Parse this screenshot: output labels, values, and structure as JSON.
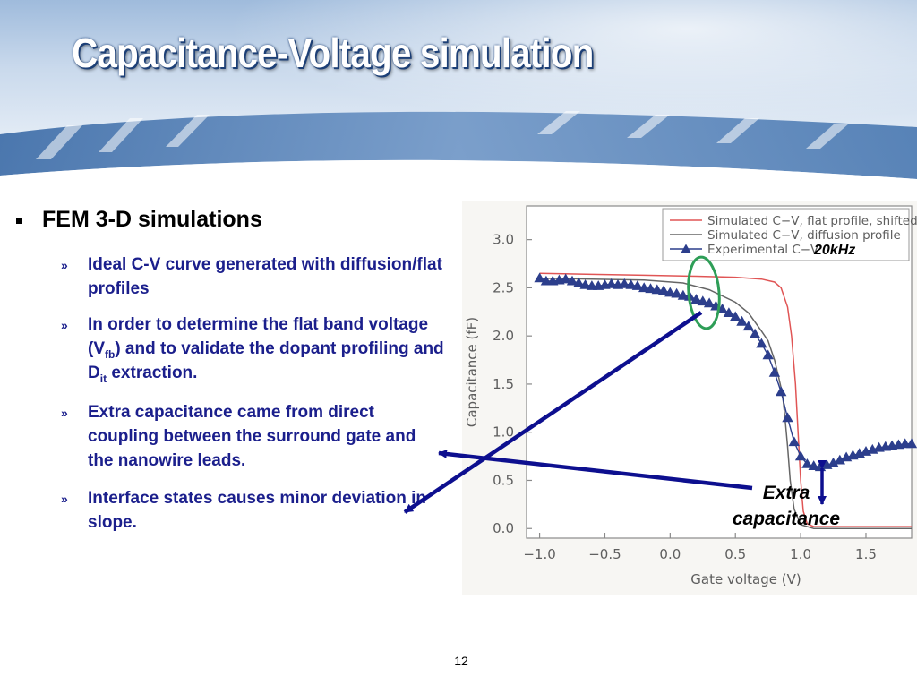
{
  "slide": {
    "title": "Capacitance-Voltage simulation",
    "page_number": "12",
    "main_bullet": "FEM 3-D simulations",
    "sub_bullets": [
      {
        "marker": "»",
        "parts": [
          {
            "t": "Ideal C-V curve generated with diffusion/flat profiles"
          }
        ]
      },
      {
        "marker": "»",
        "parts": [
          {
            "t": "In order to determine the flat band voltage (V"
          },
          {
            "sub": "fb"
          },
          {
            "t": ") and to validate the dopant profiling and D"
          },
          {
            "sub": "it"
          },
          {
            "t": " extraction."
          }
        ]
      },
      {
        "marker": "»",
        "parts": [
          {
            "t": "Extra capacitance came from direct coupling between the surround gate and the nanowire leads."
          }
        ]
      },
      {
        "marker": "»",
        "parts": [
          {
            "t": "Interface states causes minor deviation in slope."
          }
        ]
      }
    ],
    "annotations": {
      "frequency_label": "20kHz",
      "extra_label_line1": "Extra",
      "extra_label_line2": "capacitance"
    },
    "colors": {
      "title_shadow": "#1c3f76",
      "bullet_text": "#1b1f8c",
      "arrow": "#0d0f8f",
      "circle": "#2e9e57",
      "banner": "#3a6aa6"
    }
  },
  "chart_data": {
    "type": "line",
    "xlabel": "Gate voltage (V)",
    "ylabel": "Capacitance (fF)",
    "xlim": [
      -1.1,
      1.85
    ],
    "ylim": [
      -0.1,
      3.35
    ],
    "xticks": [
      -1.0,
      -0.5,
      0.0,
      0.5,
      1.0,
      1.5
    ],
    "xtick_labels": [
      "−1.0",
      "−0.5",
      "0.0",
      "0.5",
      "1.0",
      "1.5"
    ],
    "yticks": [
      0.0,
      0.5,
      1.0,
      1.5,
      2.0,
      2.5,
      3.0
    ],
    "ytick_labels": [
      "0.0",
      "0.5",
      "1.0",
      "1.5",
      "2.0",
      "2.5",
      "3.0"
    ],
    "grid": false,
    "legend_position": "top-right",
    "series": [
      {
        "name": "Simulated C−V, flat profile, shifted",
        "color": "#e05555",
        "marker": "none",
        "x": [
          -1.0,
          -0.6,
          -0.2,
          0.2,
          0.5,
          0.7,
          0.8,
          0.85,
          0.9,
          0.93,
          0.96,
          0.98,
          1.0,
          1.02,
          1.05,
          1.1,
          1.3,
          1.6,
          1.85
        ],
        "y": [
          2.65,
          2.64,
          2.63,
          2.62,
          2.61,
          2.59,
          2.56,
          2.5,
          2.3,
          2.0,
          1.5,
          1.0,
          0.5,
          0.18,
          0.05,
          0.02,
          0.02,
          0.02,
          0.02
        ]
      },
      {
        "name": "Simulated C−V, diffusion profile",
        "color": "#666666",
        "marker": "none",
        "x": [
          -1.0,
          -0.6,
          -0.2,
          0.1,
          0.3,
          0.5,
          0.6,
          0.7,
          0.75,
          0.8,
          0.83,
          0.86,
          0.88,
          0.9,
          0.92,
          0.95,
          1.0,
          1.1,
          1.3,
          1.6,
          1.85
        ],
        "y": [
          2.6,
          2.59,
          2.58,
          2.55,
          2.48,
          2.35,
          2.24,
          2.05,
          1.95,
          1.75,
          1.58,
          1.4,
          1.15,
          0.85,
          0.5,
          0.2,
          0.04,
          0.0,
          0.0,
          0.0,
          0.0
        ]
      },
      {
        "name": "Experimental C−V",
        "color": "#2c3e8c",
        "marker": "triangle",
        "x": [
          -1.0,
          -0.95,
          -0.9,
          -0.85,
          -0.8,
          -0.75,
          -0.7,
          -0.65,
          -0.6,
          -0.55,
          -0.5,
          -0.45,
          -0.4,
          -0.35,
          -0.3,
          -0.25,
          -0.2,
          -0.15,
          -0.1,
          -0.05,
          0.0,
          0.05,
          0.1,
          0.15,
          0.2,
          0.25,
          0.3,
          0.35,
          0.4,
          0.45,
          0.5,
          0.55,
          0.6,
          0.65,
          0.7,
          0.75,
          0.8,
          0.85,
          0.9,
          0.95,
          1.0,
          1.05,
          1.1,
          1.15,
          1.2,
          1.25,
          1.3,
          1.35,
          1.4,
          1.45,
          1.5,
          1.55,
          1.6,
          1.65,
          1.7,
          1.75,
          1.8,
          1.85
        ],
        "y": [
          2.6,
          2.57,
          2.57,
          2.58,
          2.59,
          2.57,
          2.55,
          2.53,
          2.52,
          2.52,
          2.53,
          2.54,
          2.53,
          2.54,
          2.53,
          2.52,
          2.5,
          2.49,
          2.48,
          2.47,
          2.45,
          2.44,
          2.42,
          2.41,
          2.38,
          2.36,
          2.34,
          2.31,
          2.28,
          2.24,
          2.2,
          2.15,
          2.1,
          2.02,
          1.92,
          1.8,
          1.62,
          1.42,
          1.15,
          0.9,
          0.75,
          0.67,
          0.65,
          0.64,
          0.66,
          0.68,
          0.71,
          0.74,
          0.76,
          0.78,
          0.8,
          0.82,
          0.84,
          0.85,
          0.86,
          0.87,
          0.88,
          0.88
        ]
      }
    ]
  }
}
